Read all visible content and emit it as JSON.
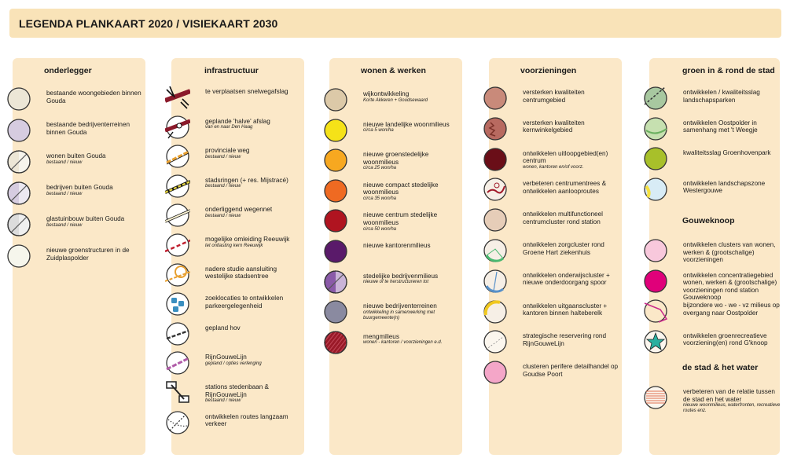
{
  "title": "LEGENDA PLANKAART 2020 / VISIEKAART 2030",
  "columns": [
    {
      "heading": "onderlegger",
      "items": [
        {
          "label": "bestaande woongebieden binnen Gouda",
          "sub": "",
          "icon": "circle-beige",
          "color": "#ece6d6"
        },
        {
          "label": "bestaande bedrijventerreinen binnen Gouda",
          "sub": "",
          "icon": "circle-lilac",
          "color": "#d6cce0"
        },
        {
          "label": "wonen buiten Gouda",
          "sub": "bestaand / nieuw",
          "icon": "circle-beige-split",
          "color": "#ece6d6"
        },
        {
          "label": "bedrijven buiten Gouda",
          "sub": "bestaand / nieuw",
          "icon": "circle-lilac-split",
          "color": "#d6cce0"
        },
        {
          "label": "glastuinbouw buiten Gouda",
          "sub": "bestaand / nieuw",
          "icon": "circle-grey-split",
          "color": "#dcdcdc"
        },
        {
          "label": "nieuwe groenstructuren in de Zuidplaspolder",
          "sub": "",
          "icon": "circle-cream",
          "color": "#f6f6ec"
        }
      ]
    },
    {
      "heading": "infrastructuur",
      "items": [
        {
          "label": "te verplaatsen snelwegafslag",
          "sub": "",
          "icon": "road-relocate-icon",
          "color": "#8b1a2b"
        },
        {
          "label": "geplande 'halve' afslag",
          "sub": "van en naar Den Haag",
          "icon": "half-exit-icon",
          "color": "#8b1a2b"
        },
        {
          "label": "provinciale weg",
          "sub": "bestaand / nieuw",
          "icon": "provincial-road-icon",
          "color": "#e8a030"
        },
        {
          "label": "stadsringen (+ res. Mijstracé)",
          "sub": "bestaand / nieuw",
          "icon": "city-ring-icon",
          "color": "#e0d040"
        },
        {
          "label": "onderliggend wegennet",
          "sub": "bestaand / nieuw",
          "icon": "local-road-icon",
          "color": "#f8f0d0"
        },
        {
          "label": "mogelijke omleiding Reeuwijk",
          "sub": "tet ontlasting kern Reeuwijk",
          "icon": "detour-icon",
          "color": "#c02030"
        },
        {
          "label": "nadere studie aansluiting westelijke stadsentree",
          "sub": "",
          "icon": "study-connection-icon",
          "color": "#e8a030"
        },
        {
          "label": "zoeklocaties te ontwikkelen parkeergelegenheid",
          "sub": "",
          "icon": "parking-icon",
          "color": "#3a8fc0"
        },
        {
          "label": "gepland hov",
          "sub": "",
          "icon": "transit-icon",
          "color": "#333333"
        },
        {
          "label": "RijnGouweLijn",
          "sub": "gepland / opties verlenging",
          "icon": "light-rail-icon",
          "color": "#b05ca8"
        },
        {
          "label": "stations stedenbaan & RijnGouweLijn",
          "sub": "bestaand / nieuw",
          "icon": "station-icon",
          "color": "#222222"
        },
        {
          "label": "ontwikkelen routes langzaam verkeer",
          "sub": "",
          "icon": "slow-traffic-icon",
          "color": "#222222"
        }
      ]
    },
    {
      "heading": "wonen & werken",
      "items": [
        {
          "label": "wijkontwikkeling",
          "sub": "Korte Akkeren + Goudsewaard",
          "icon": "circle",
          "color": "#dcc9a8"
        },
        {
          "label": "nieuwe landelijke woonmilieus",
          "sub": "circa 5 won/ha",
          "icon": "circle",
          "color": "#f5e218"
        },
        {
          "label": "nieuwe groenstedelijke woonmilieus",
          "sub": "circa 25 won/ha",
          "icon": "circle",
          "color": "#f7a820"
        },
        {
          "label": "nieuwe compact stedelijke woonmilieus",
          "sub": "circa 35 won/ha",
          "icon": "circle",
          "color": "#ef6a22"
        },
        {
          "label": "nieuwe centrum stedelijke woonmilieus",
          "sub": "circa 50 won/ha",
          "icon": "circle",
          "color": "#b01420"
        },
        {
          "label": "nieuwe kantorenmilieus",
          "sub": "",
          "icon": "circle",
          "color": "#5a1a6a"
        },
        {
          "label": "stedelijke bedrijvenmilieus",
          "sub": "nieuwe of te herstructureren tot",
          "icon": "circle-split",
          "color": "#8a5aa8"
        },
        {
          "label": "nieuwe bedrijventerreinen",
          "sub": "ontwikkeling in samenwerking met buurgemeente(n)",
          "icon": "circle",
          "color": "#8a8aa0"
        },
        {
          "label": "mengmilieus",
          "sub": "wonen - kantoren / voorzieningen e.d.",
          "icon": "circle-hatched",
          "color": "#9a1a28"
        }
      ]
    },
    {
      "heading": "voorzieningen",
      "items": [
        {
          "label": "versterken kwaliteiten centrumgebied",
          "sub": "",
          "icon": "circle",
          "color": "#c98a7a"
        },
        {
          "label": "versterken kwaliteiten kernwinkelgebied",
          "sub": "",
          "icon": "circle-rough",
          "color": "#b86a60"
        },
        {
          "label": "ontwikkelen uitloopgebied(en) centrum",
          "sub": "wonen, kantoren en/of voorz.",
          "icon": "circle",
          "color": "#6a0e18"
        },
        {
          "label": "verbeteren centrumentrees & ontwikkelen aanlooproutes",
          "sub": "",
          "icon": "circle-route",
          "color": "#f6efe6"
        },
        {
          "label": "ontwikkelen multifunctioneel centrumcluster rond station",
          "sub": "",
          "icon": "circle",
          "color": "#e6cdb8"
        },
        {
          "label": "ontwikkelen zorgcluster rond Groene Hart ziekenhuis",
          "sub": "",
          "icon": "circle-green-arc",
          "color": "#f6efe6"
        },
        {
          "label": "ontwikkelen onderwijscluster + nieuwe onderdoorgang spoor",
          "sub": "",
          "icon": "circle-blue-arc",
          "color": "#f6efe6"
        },
        {
          "label": "ontwikkelen uitgaanscluster + kantoren binnen halteberelk",
          "sub": "",
          "icon": "circle-yellow-arc",
          "color": "#f6efe6"
        },
        {
          "label": "strategische reservering rond RijnGouweLijn",
          "sub": "",
          "icon": "circle-outline",
          "color": "#fbf6ee"
        },
        {
          "label": "clusteren perifere detailhandel op Goudse Poort",
          "sub": "",
          "icon": "circle",
          "color": "#f4a6c8"
        }
      ]
    },
    {
      "heading": "groen in & rond de stad",
      "items": [
        {
          "label": "ontwikkelen / kwaliteitsslag landschapsparken",
          "sub": "",
          "icon": "circle-park",
          "color": "#a8c8a0"
        },
        {
          "label": "ontwikkelen Oostpolder in samenhang met 't Weegje",
          "sub": "",
          "icon": "circle-lightgreen",
          "color": "#c6e0b0"
        },
        {
          "label": "kwaliteitsslag Groenhovenpark",
          "sub": "",
          "icon": "circle",
          "color": "#a8c02a"
        },
        {
          "label": "ontwikkelen landschapszone Westergouwe",
          "sub": "",
          "icon": "circle-blue-yellow",
          "color": "#d8ecf6"
        }
      ],
      "sub_heading_1": "Gouweknoop",
      "items_2": [
        {
          "label": "ontwikkelen clusters van wonen, werken & (grootschalige) voorzieningen",
          "sub": "",
          "icon": "circle",
          "color": "#f8c8dc"
        },
        {
          "label": "ontwikkelen concentratiegebied wonen, werken & (grootschalige) voorzieningen rond station Gouweknoop",
          "sub": "",
          "icon": "circle",
          "color": "#e0007a"
        },
        {
          "label": "bijzondere wo - we - vz milieus op overgang naar Oostpolder",
          "sub": "",
          "icon": "circle-magenta-outline",
          "color": "#c8288a"
        },
        {
          "label": "ontwikkelen groenrecreatieve voorziening(en) rond G'knoop",
          "sub": "",
          "icon": "circle-star",
          "color": "#2ab0a0"
        }
      ],
      "sub_heading_2": "de stad & het water",
      "items_3": [
        {
          "label": "verbeteren van de relatie tussen de stad en het water",
          "sub": "nieuwe woonmilieus, waterfronten, recreatieve routes enz.",
          "icon": "circle-water-lines",
          "color": "#e07050"
        }
      ]
    }
  ]
}
